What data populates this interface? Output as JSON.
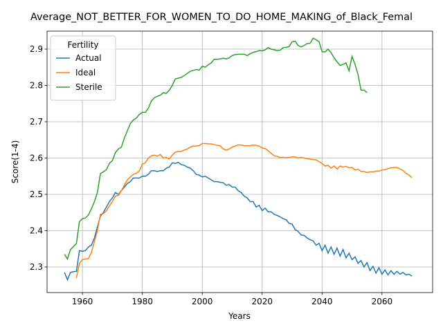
{
  "chart_data": {
    "type": "line",
    "title": "Average_NOT_BETTER_FOR_WOMEN_TO_DO_HOME_MAKING_of_Black_Femal",
    "xlabel": "Years",
    "ylabel": "Score(1-4)",
    "xlim": [
      1948.2,
      2076.9
    ],
    "ylim": [
      2.2295,
      2.9495
    ],
    "xticks": [
      1960,
      1980,
      2000,
      2020,
      2040,
      2060
    ],
    "yticks": [
      2.3,
      2.4,
      2.5,
      2.6,
      2.7,
      2.8,
      2.9
    ],
    "grid": true,
    "legend_title": "Fertility",
    "legend_position": "upper left",
    "series": [
      {
        "name": "Actual",
        "color": "#1f77b4",
        "x": [
          1954,
          1955,
          1956,
          1957,
          1958,
          1959,
          1960,
          1961,
          1962,
          1963,
          1964,
          1965,
          1966,
          1967,
          1968,
          1969,
          1970,
          1971,
          1972,
          1973,
          1974,
          1975,
          1976,
          1977,
          1978,
          1979,
          1980,
          1981,
          1982,
          1983,
          1984,
          1985,
          1986,
          1987,
          1988,
          1989,
          1990,
          1991,
          1992,
          1993,
          1994,
          1995,
          1996,
          1997,
          1998,
          1999,
          2000,
          2001,
          2002,
          2003,
          2004,
          2005,
          2006,
          2007,
          2008,
          2009,
          2010,
          2011,
          2012,
          2013,
          2014,
          2015,
          2016,
          2017,
          2018,
          2019,
          2020,
          2021,
          2022,
          2023,
          2024,
          2025,
          2026,
          2027,
          2028,
          2029,
          2030,
          2031,
          2032,
          2033,
          2034,
          2035,
          2036,
          2037,
          2038,
          2039,
          2040,
          2041,
          2042,
          2043,
          2044,
          2045,
          2046,
          2047,
          2048,
          2049,
          2050,
          2051,
          2052,
          2053,
          2054,
          2055,
          2056,
          2057,
          2058,
          2059,
          2060,
          2061,
          2062,
          2063,
          2064,
          2065,
          2066,
          2067,
          2068,
          2069,
          2070
        ],
        "values": [
          2.285,
          2.265,
          2.285,
          2.287,
          2.288,
          2.345,
          2.343,
          2.345,
          2.355,
          2.36,
          2.38,
          2.41,
          2.44,
          2.45,
          2.465,
          2.48,
          2.49,
          2.505,
          2.5,
          2.51,
          2.52,
          2.53,
          2.535,
          2.545,
          2.545,
          2.545,
          2.55,
          2.55,
          2.555,
          2.565,
          2.565,
          2.563,
          2.565,
          2.565,
          2.572,
          2.575,
          2.587,
          2.585,
          2.588,
          2.582,
          2.58,
          2.575,
          2.572,
          2.565,
          2.555,
          2.553,
          2.548,
          2.55,
          2.545,
          2.54,
          2.535,
          2.535,
          2.533,
          2.532,
          2.525,
          2.527,
          2.52,
          2.52,
          2.51,
          2.505,
          2.495,
          2.49,
          2.48,
          2.48,
          2.465,
          2.47,
          2.455,
          2.462,
          2.452,
          2.452,
          2.445,
          2.442,
          2.438,
          2.433,
          2.43,
          2.42,
          2.418,
          2.403,
          2.398,
          2.388,
          2.387,
          2.38,
          2.375,
          2.372,
          2.36,
          2.365,
          2.345,
          2.36,
          2.338,
          2.355,
          2.335,
          2.352,
          2.33,
          2.348,
          2.325,
          2.338,
          2.32,
          2.328,
          2.31,
          2.318,
          2.3,
          2.312,
          2.29,
          2.302,
          2.283,
          2.298,
          2.28,
          2.292,
          2.278,
          2.29,
          2.28,
          2.288,
          2.28,
          2.285,
          2.278,
          2.28,
          2.275
        ]
      },
      {
        "name": "Ideal",
        "color": "#ff7f0e",
        "x": [
          1958,
          1959,
          1960,
          1961,
          1962,
          1963,
          1964,
          1965,
          1966,
          1967,
          1968,
          1969,
          1970,
          1971,
          1972,
          1973,
          1974,
          1975,
          1976,
          1977,
          1978,
          1979,
          1980,
          1981,
          1982,
          1983,
          1984,
          1985,
          1986,
          1987,
          1988,
          1989,
          1990,
          1991,
          1992,
          1993,
          1994,
          1995,
          1996,
          1997,
          1998,
          1999,
          2000,
          2001,
          2002,
          2003,
          2004,
          2005,
          2006,
          2007,
          2008,
          2009,
          2010,
          2011,
          2012,
          2013,
          2014,
          2015,
          2016,
          2017,
          2018,
          2019,
          2020,
          2021,
          2022,
          2023,
          2024,
          2025,
          2026,
          2027,
          2028,
          2029,
          2030,
          2031,
          2032,
          2033,
          2034,
          2035,
          2036,
          2037,
          2038,
          2039,
          2040,
          2041,
          2042,
          2043,
          2044,
          2045,
          2046,
          2047,
          2048,
          2049,
          2050,
          2051,
          2052,
          2053,
          2054,
          2055,
          2056,
          2057,
          2058,
          2059,
          2060,
          2061,
          2062,
          2063,
          2064,
          2065,
          2066,
          2067,
          2068,
          2069,
          2070
        ],
        "values": [
          2.27,
          2.31,
          2.32,
          2.322,
          2.323,
          2.34,
          2.37,
          2.4,
          2.445,
          2.447,
          2.455,
          2.468,
          2.48,
          2.495,
          2.497,
          2.51,
          2.525,
          2.54,
          2.548,
          2.555,
          2.558,
          2.565,
          2.583,
          2.587,
          2.6,
          2.606,
          2.608,
          2.605,
          2.61,
          2.6,
          2.602,
          2.597,
          2.608,
          2.616,
          2.618,
          2.618,
          2.622,
          2.625,
          2.63,
          2.633,
          2.633,
          2.634,
          2.64,
          2.64,
          2.639,
          2.639,
          2.637,
          2.635,
          2.634,
          2.625,
          2.622,
          2.625,
          2.63,
          2.633,
          2.636,
          2.636,
          2.634,
          2.634,
          2.634,
          2.636,
          2.635,
          2.633,
          2.628,
          2.626,
          2.62,
          2.613,
          2.606,
          2.605,
          2.601,
          2.602,
          2.601,
          2.602,
          2.603,
          2.603,
          2.6,
          2.602,
          2.6,
          2.598,
          2.597,
          2.596,
          2.595,
          2.59,
          2.585,
          2.578,
          2.58,
          2.572,
          2.578,
          2.57,
          2.578,
          2.575,
          2.577,
          2.573,
          2.574,
          2.567,
          2.569,
          2.563,
          2.563,
          2.56,
          2.562,
          2.562,
          2.564,
          2.564,
          2.567,
          2.568,
          2.571,
          2.573,
          2.574,
          2.574,
          2.57,
          2.566,
          2.558,
          2.553,
          2.546
        ]
      },
      {
        "name": "Sterile",
        "color": "#2ca02c",
        "x": [
          1954,
          1955,
          1956,
          1957,
          1958,
          1959,
          1960,
          1961,
          1962,
          1963,
          1964,
          1965,
          1966,
          1967,
          1968,
          1969,
          1970,
          1971,
          1972,
          1973,
          1974,
          1975,
          1976,
          1977,
          1978,
          1979,
          1980,
          1981,
          1982,
          1983,
          1984,
          1985,
          1986,
          1987,
          1988,
          1989,
          1990,
          1991,
          1992,
          1993,
          1994,
          1995,
          1996,
          1997,
          1998,
          1999,
          2000,
          2001,
          2002,
          2003,
          2004,
          2005,
          2006,
          2007,
          2008,
          2009,
          2010,
          2011,
          2012,
          2013,
          2014,
          2015,
          2016,
          2017,
          2018,
          2019,
          2020,
          2021,
          2022,
          2023,
          2024,
          2025,
          2026,
          2027,
          2028,
          2029,
          2030,
          2031,
          2032,
          2033,
          2034,
          2035,
          2036,
          2037,
          2038,
          2039,
          2040,
          2041,
          2042,
          2043,
          2044,
          2045,
          2046,
          2047,
          2048,
          2049,
          2050,
          2051,
          2052,
          2053,
          2054,
          2055
        ],
        "values": [
          2.335,
          2.322,
          2.348,
          2.356,
          2.365,
          2.425,
          2.433,
          2.435,
          2.443,
          2.46,
          2.48,
          2.505,
          2.557,
          2.562,
          2.568,
          2.585,
          2.593,
          2.615,
          2.625,
          2.63,
          2.655,
          2.675,
          2.695,
          2.705,
          2.71,
          2.72,
          2.726,
          2.726,
          2.737,
          2.757,
          2.766,
          2.77,
          2.773,
          2.78,
          2.778,
          2.787,
          2.8,
          2.818,
          2.82,
          2.822,
          2.827,
          2.833,
          2.839,
          2.841,
          2.844,
          2.842,
          2.853,
          2.85,
          2.857,
          2.862,
          2.872,
          2.872,
          2.873,
          2.875,
          2.873,
          2.876,
          2.882,
          2.885,
          2.886,
          2.886,
          2.886,
          2.882,
          2.887,
          2.891,
          2.893,
          2.896,
          2.895,
          2.898,
          2.904,
          2.9,
          2.898,
          2.896,
          2.897,
          2.904,
          2.905,
          2.907,
          2.92,
          2.922,
          2.91,
          2.906,
          2.91,
          2.915,
          2.916,
          2.93,
          2.926,
          2.92,
          2.893,
          2.892,
          2.9,
          2.89,
          2.876,
          2.865,
          2.855,
          2.858,
          2.862,
          2.84,
          2.88,
          2.858,
          2.83,
          2.787,
          2.787,
          2.78
        ]
      }
    ]
  }
}
